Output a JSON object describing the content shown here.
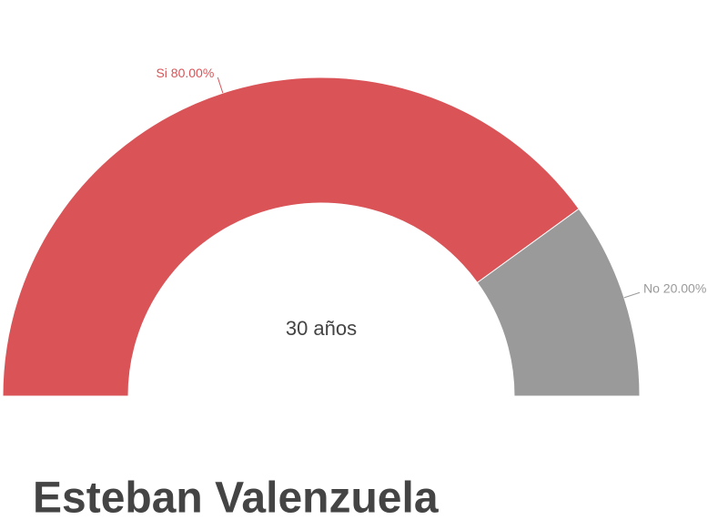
{
  "chart_data": {
    "type": "pie",
    "shape": "semi-donut",
    "title": "Esteban Valenzuela",
    "center_label": "30 años",
    "categories": [
      "Si",
      "No"
    ],
    "values": [
      80,
      20
    ],
    "value_labels": [
      "80.00%",
      "20.00%"
    ],
    "colors": [
      "#d95357",
      "#9a9a9a"
    ]
  }
}
